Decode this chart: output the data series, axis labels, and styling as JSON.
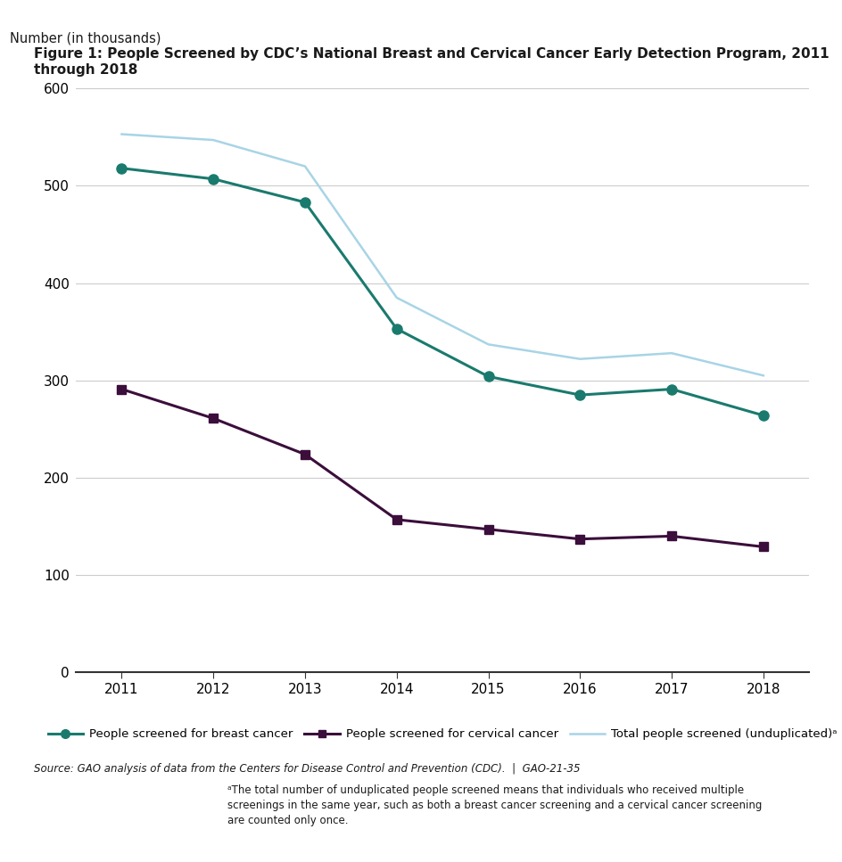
{
  "years": [
    2011,
    2012,
    2013,
    2014,
    2015,
    2016,
    2017,
    2018
  ],
  "breast_cancer": [
    518,
    507,
    483,
    353,
    304,
    285,
    291,
    264
  ],
  "cervical_cancer": [
    291,
    261,
    224,
    157,
    147,
    137,
    140,
    129
  ],
  "total_unduplicated": [
    553,
    547,
    520,
    385,
    337,
    322,
    328,
    305
  ],
  "breast_color": "#1a7a6e",
  "cervical_color": "#3b0e3b",
  "total_color": "#a8d4e6",
  "title": "Figure 1: People Screened by CDC’s National Breast and Cervical Cancer Early Detection Program, 2011 through 2018",
  "ylabel": "Number (in thousands)",
  "ylim": [
    0,
    620
  ],
  "yticks": [
    0,
    100,
    200,
    300,
    400,
    500,
    600
  ],
  "legend_breast": "People screened for breast cancer",
  "legend_cervical": "People screened for cervical cancer",
  "legend_total": "Total people screened (unduplicated)ᵃ",
  "source_text": "Source: GAO analysis of data from the Centers for Disease Control and Prevention (CDC).  |  GAO-21-35",
  "footnote": "ᵃThe total number of unduplicated people screened means that individuals who received multiple\nscreenings in the same year, such as both a breast cancer screening and a cervical cancer screening\nare counted only once.",
  "header_bg": "#1a1a1a",
  "title_color": "#1a1a1a",
  "background_color": "#ffffff"
}
